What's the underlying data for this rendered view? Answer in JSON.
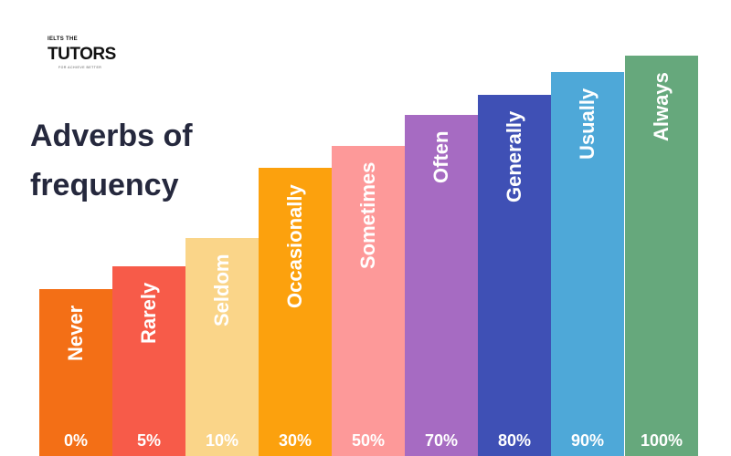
{
  "logo": {
    "top_text": "IELTS THE",
    "main_text": "TUTORS",
    "tagline": "FOR ACHIEVE BETTER"
  },
  "title": "Adverbs of frequency",
  "chart_data": {
    "type": "bar",
    "title": "Adverbs of frequency",
    "categories": [
      "Never",
      "Rarely",
      "Seldom",
      "Occasionally",
      "Sometimes",
      "Often",
      "Generally",
      "Usually",
      "Always"
    ],
    "values": [
      0,
      5,
      10,
      30,
      50,
      70,
      80,
      90,
      100
    ],
    "value_labels": [
      "0%",
      "5%",
      "10%",
      "30%",
      "50%",
      "70%",
      "80%",
      "90%",
      "100%"
    ],
    "colors": [
      "#f36f16",
      "#f75b49",
      "#fad589",
      "#fca10d",
      "#fd9999",
      "#a66bc2",
      "#3f50b5",
      "#4ea8d8",
      "#66a87c"
    ],
    "xlabel": "",
    "ylabel": "",
    "grid": false,
    "legend": "none"
  }
}
